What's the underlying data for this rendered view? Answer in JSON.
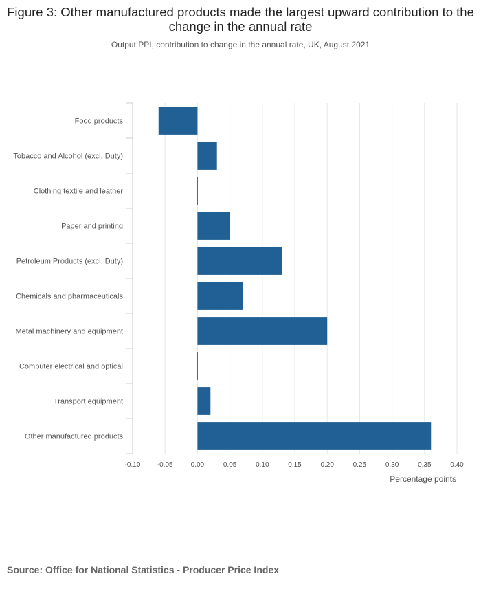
{
  "title": "Figure 3: Other manufactured products made the largest upward contribution to the change in the annual rate",
  "subtitle": "Output PPI, contribution to change in the annual rate, UK, August 2021",
  "source": "Source: Office for National Statistics - Producer Price Index",
  "colors": {
    "bar": "#206095",
    "grid": "#e6e6e6",
    "axis": "#cccccc"
  },
  "chart_data": {
    "type": "bar",
    "orientation": "horizontal",
    "categories": [
      "Food products",
      "Tobacco and Alcohol (excl. Duty)",
      "Clothing textile and leather",
      "Paper and printing",
      "Petroleum Products (excl. Duty)",
      "Chemicals and pharmaceuticals",
      "Metal machinery and equipment",
      "Computer electrical and optical",
      "Transport equipment",
      "Other manufactured products"
    ],
    "values": [
      -0.06,
      0.03,
      0.0,
      0.05,
      0.13,
      0.07,
      0.2,
      0.0,
      0.02,
      0.36
    ],
    "xlabel": "Percentage points",
    "ylabel": "",
    "xlim": [
      -0.1,
      0.4
    ],
    "xticks": [
      -0.1,
      -0.05,
      0.0,
      0.05,
      0.1,
      0.15,
      0.2,
      0.25,
      0.3,
      0.35,
      0.4
    ],
    "xtick_labels": [
      "-0.10",
      "-0.05",
      "0.00",
      "0.05",
      "0.10",
      "0.15",
      "0.20",
      "0.25",
      "0.30",
      "0.35",
      "0.40"
    ],
    "grid": true,
    "legend": false
  }
}
